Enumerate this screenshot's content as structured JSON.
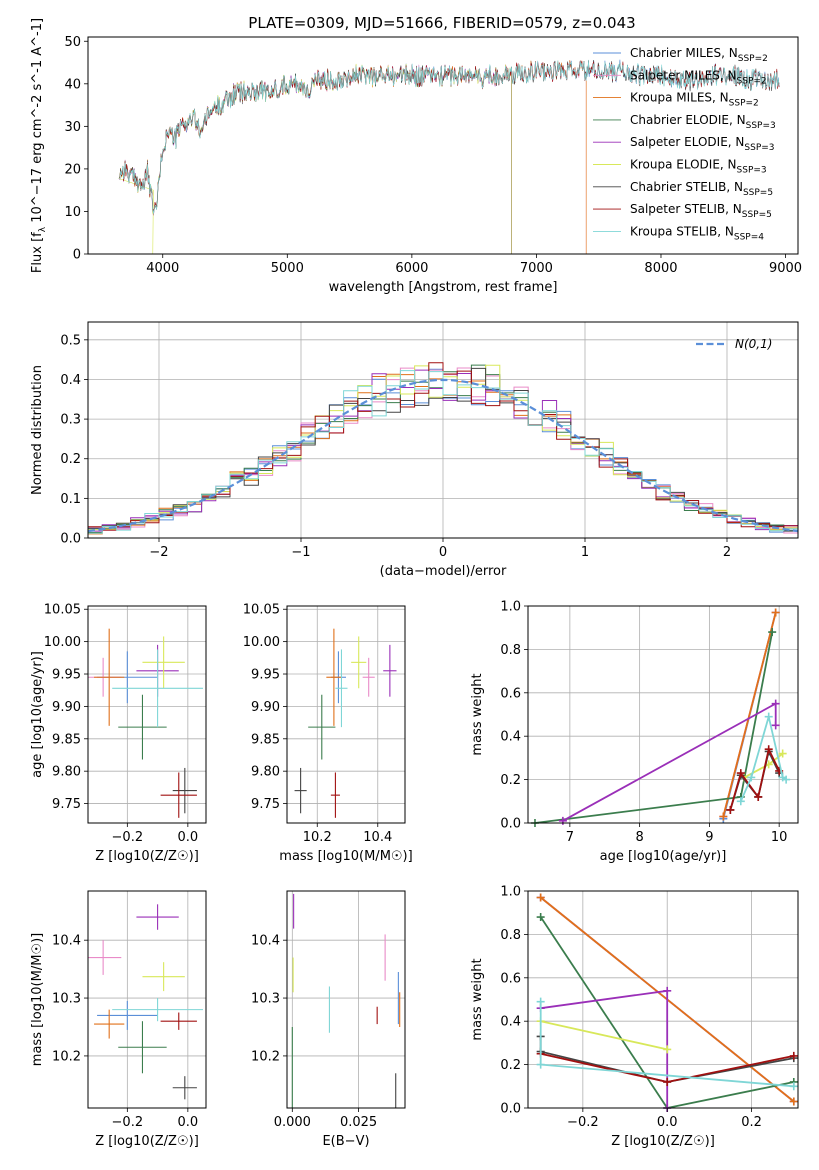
{
  "figure_title": "PLATE=0309, MJD=51666, FIBERID=0579, z=0.043",
  "colors": {
    "Chabrier MILES": "#5b8fd8",
    "Salpeter MILES": "#e98bc8",
    "Kroupa MILES": "#e0701a",
    "Chabrier ELODIE": "#3b7d4d",
    "Salpeter ELODIE": "#9a2fb8",
    "Kroupa ELODIE": "#d8e85a",
    "Chabrier STELIB": "#444444",
    "Salpeter STELIB": "#a01010",
    "Kroupa STELIB": "#7fd6d6",
    "normal": "#5b8fd8"
  },
  "chart_data": [
    {
      "id": "spectrum",
      "type": "line",
      "title": "PLATE=0309, MJD=51666, FIBERID=0579, z=0.043",
      "xlabel": "wavelength [Angstrom, rest frame]",
      "ylabel": "Flux [f_λ 10^-17 erg cm^-2 s^-1 A^-1]",
      "xlim": [
        3400,
        9100
      ],
      "ylim": [
        0,
        51
      ],
      "xticks": [
        4000,
        5000,
        6000,
        7000,
        8000,
        9000
      ],
      "yticks": [
        0,
        10,
        20,
        30,
        40,
        50
      ],
      "grid": false,
      "legend_position": "top-right",
      "legend": [
        {
          "key": "Chabrier MILES",
          "label": "Chabrier MILES, N_SSP=2"
        },
        {
          "key": "Salpeter MILES",
          "label": "Salpeter MILES, N_SSP=2"
        },
        {
          "key": "Kroupa MILES",
          "label": "Kroupa MILES, N_SSP=2"
        },
        {
          "key": "Chabrier ELODIE",
          "label": "Chabrier ELODIE, N_SSP=3"
        },
        {
          "key": "Salpeter ELODIE",
          "label": "Salpeter ELODIE, N_SSP=3"
        },
        {
          "key": "Kroupa ELODIE",
          "label": "Kroupa ELODIE, N_SSP=3"
        },
        {
          "key": "Chabrier STELIB",
          "label": "Chabrier STELIB, N_SSP=5"
        },
        {
          "key": "Salpeter STELIB",
          "label": "Salpeter STELIB, N_SSP=5"
        },
        {
          "key": "Kroupa STELIB",
          "label": "Kroupa STELIB, N_SSP=4"
        }
      ],
      "continuum": [
        [
          3650,
          19
        ],
        [
          3700,
          20
        ],
        [
          3750,
          18
        ],
        [
          3800,
          17
        ],
        [
          3850,
          16
        ],
        [
          3880,
          20
        ],
        [
          3900,
          14
        ],
        [
          3920,
          12
        ],
        [
          3930,
          9
        ],
        [
          3960,
          14
        ],
        [
          4000,
          25
        ],
        [
          4050,
          29
        ],
        [
          4100,
          27
        ],
        [
          4150,
          30
        ],
        [
          4200,
          31
        ],
        [
          4250,
          32
        ],
        [
          4300,
          29
        ],
        [
          4350,
          32
        ],
        [
          4400,
          34
        ],
        [
          4450,
          35
        ],
        [
          4500,
          36
        ],
        [
          4600,
          38
        ],
        [
          4700,
          38
        ],
        [
          4800,
          39
        ],
        [
          4850,
          37
        ],
        [
          4900,
          39
        ],
        [
          5000,
          40
        ],
        [
          5100,
          40
        ],
        [
          5170,
          38
        ],
        [
          5200,
          40
        ],
        [
          5300,
          41
        ],
        [
          5400,
          41
        ],
        [
          5500,
          42
        ],
        [
          5600,
          42
        ],
        [
          5700,
          42
        ],
        [
          5800,
          42
        ],
        [
          5900,
          42
        ],
        [
          6000,
          42
        ],
        [
          6100,
          42
        ],
        [
          6200,
          42
        ],
        [
          6300,
          42
        ],
        [
          6400,
          42
        ],
        [
          6500,
          42
        ],
        [
          6560,
          41
        ],
        [
          6600,
          42
        ],
        [
          6700,
          42
        ],
        [
          6800,
          42
        ],
        [
          6900,
          43
        ],
        [
          7000,
          43
        ],
        [
          7100,
          43
        ],
        [
          7200,
          43
        ],
        [
          7300,
          43
        ],
        [
          7400,
          43
        ],
        [
          7500,
          43
        ],
        [
          7600,
          43
        ],
        [
          7700,
          43
        ],
        [
          7800,
          42
        ],
        [
          7900,
          42
        ],
        [
          8000,
          42
        ],
        [
          8100,
          41
        ],
        [
          8200,
          41
        ],
        [
          8300,
          41
        ],
        [
          8400,
          42
        ],
        [
          8500,
          42
        ],
        [
          8600,
          42
        ],
        [
          8700,
          41
        ],
        [
          8800,
          41
        ],
        [
          8900,
          41
        ]
      ],
      "series_ranges": {
        "Chabrier MILES": [
          3650,
          8950
        ],
        "Salpeter MILES": [
          3650,
          7400
        ],
        "Kroupa MILES": [
          3650,
          7400
        ],
        "Chabrier ELODIE": [
          3650,
          6800
        ],
        "Salpeter ELODIE": [
          3650,
          6800
        ],
        "Kroupa ELODIE": [
          3650,
          6800
        ],
        "Chabrier STELIB": [
          3650,
          8950
        ],
        "Salpeter STELIB": [
          3650,
          8950
        ],
        "Kroupa STELIB": [
          3650,
          8950
        ]
      }
    },
    {
      "id": "residuals",
      "type": "histogram",
      "xlabel": "(data-model)/error",
      "ylabel": "Normed distribution",
      "xlim": [
        -2.5,
        2.5
      ],
      "ylim": [
        0,
        0.545
      ],
      "xticks": [
        -2,
        -1,
        0,
        1,
        2
      ],
      "yticks": [
        0.0,
        0.1,
        0.2,
        0.3,
        0.4,
        0.5
      ],
      "grid": true,
      "legend_position": "top-right",
      "legend": [
        {
          "key": "normal",
          "label": "N(0,1)",
          "style": "dashed"
        }
      ],
      "bin_width": 0.1,
      "bins_from": -2.5,
      "bins_to": 2.5,
      "reference_curve": "standard normal density"
    },
    {
      "id": "age_vs_Z",
      "type": "scatter",
      "xlabel": "Z [log10(Z/Z☉)]",
      "ylabel": "age [log10(age/yr)]",
      "xlim": [
        -0.33,
        0.06
      ],
      "ylim": [
        9.72,
        10.055
      ],
      "xticks": [
        -0.2,
        0.0
      ],
      "yticks": [
        9.75,
        9.8,
        9.85,
        9.9,
        9.95,
        10.0,
        10.05
      ],
      "grid": true,
      "points": [
        {
          "key": "Chabrier MILES",
          "x": -0.2,
          "y": 9.945,
          "xerr": 0.1,
          "yerr": 0.04
        },
        {
          "key": "Salpeter MILES",
          "x": -0.28,
          "y": 9.945,
          "xerr": 0.06,
          "yerr": 0.03
        },
        {
          "key": "Kroupa MILES",
          "x": -0.26,
          "y": 9.945,
          "xerr": 0.05,
          "yerr": 0.075
        },
        {
          "key": "Chabrier ELODIE",
          "x": -0.15,
          "y": 9.868,
          "xerr": 0.08,
          "yerr": 0.05
        },
        {
          "key": "Salpeter ELODIE",
          "x": -0.1,
          "y": 9.955,
          "xerr": 0.07,
          "yerr": 0.04
        },
        {
          "key": "Kroupa ELODIE",
          "x": -0.08,
          "y": 9.968,
          "xerr": 0.07,
          "yerr": 0.04
        },
        {
          "key": "Chabrier STELIB",
          "x": -0.01,
          "y": 9.77,
          "xerr": 0.04,
          "yerr": 0.035
        },
        {
          "key": "Salpeter STELIB",
          "x": -0.03,
          "y": 9.763,
          "xerr": 0.06,
          "yerr": 0.035
        },
        {
          "key": "Kroupa STELIB",
          "x": -0.1,
          "y": 9.928,
          "xerr": 0.15,
          "yerr": 0.06
        }
      ]
    },
    {
      "id": "age_vs_mass",
      "type": "scatter",
      "xlabel": "mass [log10(M/M☉)]",
      "ylabel": "",
      "xlim": [
        10.1,
        10.49
      ],
      "ylim": [
        9.72,
        10.055
      ],
      "xticks": [
        10.2,
        10.4
      ],
      "yticks": [
        9.75,
        9.8,
        9.85,
        9.9,
        9.95,
        10.0,
        10.05
      ],
      "grid": true,
      "points": [
        {
          "key": "Chabrier MILES",
          "x": 10.27,
          "y": 9.945,
          "xerr": 0.025,
          "yerr": 0.04
        },
        {
          "key": "Salpeter MILES",
          "x": 10.37,
          "y": 9.945,
          "xerr": 0.02,
          "yerr": 0.03
        },
        {
          "key": "Kroupa MILES",
          "x": 10.255,
          "y": 9.945,
          "xerr": 0.025,
          "yerr": 0.075
        },
        {
          "key": "Chabrier ELODIE",
          "x": 10.215,
          "y": 9.868,
          "xerr": 0.045,
          "yerr": 0.05
        },
        {
          "key": "Salpeter ELODIE",
          "x": 10.44,
          "y": 9.955,
          "xerr": 0.022,
          "yerr": 0.04
        },
        {
          "key": "Kroupa ELODIE",
          "x": 10.337,
          "y": 9.968,
          "xerr": 0.025,
          "yerr": 0.04
        },
        {
          "key": "Chabrier STELIB",
          "x": 10.145,
          "y": 9.77,
          "xerr": 0.02,
          "yerr": 0.035
        },
        {
          "key": "Salpeter STELIB",
          "x": 10.26,
          "y": 9.763,
          "xerr": 0.015,
          "yerr": 0.035
        },
        {
          "key": "Kroupa STELIB",
          "x": 10.28,
          "y": 9.928,
          "xerr": 0.02,
          "yerr": 0.06
        }
      ]
    },
    {
      "id": "massweight_vs_age",
      "type": "line",
      "xlabel": "age [log10(age/yr)]",
      "ylabel": "mass weight",
      "xlim": [
        6.4,
        10.27
      ],
      "ylim": [
        0,
        1.0
      ],
      "xticks": [
        7,
        8,
        9,
        10
      ],
      "yticks": [
        0.0,
        0.2,
        0.4,
        0.6,
        0.8,
        1.0
      ],
      "grid": true,
      "series": [
        {
          "key": "Chabrier MILES",
          "points": [
            [
              9.95,
              0.97
            ],
            [
              9.2,
              0.02
            ]
          ]
        },
        {
          "key": "Salpeter MILES",
          "points": [
            [
              9.95,
              0.97
            ],
            [
              9.2,
              0.03
            ]
          ]
        },
        {
          "key": "Kroupa MILES",
          "points": [
            [
              9.95,
              0.97
            ],
            [
              9.2,
              0.03
            ]
          ]
        },
        {
          "key": "Chabrier ELODIE",
          "points": [
            [
              6.5,
              0.0
            ],
            [
              9.45,
              0.12
            ],
            [
              9.9,
              0.88
            ]
          ]
        },
        {
          "key": "Salpeter ELODIE",
          "points": [
            [
              6.9,
              0.01
            ],
            [
              9.95,
              0.55
            ],
            [
              9.95,
              0.45
            ]
          ]
        },
        {
          "key": "Kroupa ELODIE",
          "points": [
            [
              9.5,
              0.21
            ],
            [
              9.85,
              0.27
            ],
            [
              10.05,
              0.32
            ]
          ]
        },
        {
          "key": "Chabrier STELIB",
          "points": [
            [
              9.3,
              0.06
            ],
            [
              9.45,
              0.22
            ],
            [
              9.7,
              0.12
            ],
            [
              9.85,
              0.33
            ],
            [
              10.0,
              0.23
            ]
          ]
        },
        {
          "key": "Salpeter STELIB",
          "points": [
            [
              9.3,
              0.06
            ],
            [
              9.45,
              0.23
            ],
            [
              9.7,
              0.12
            ],
            [
              9.85,
              0.34
            ],
            [
              10.0,
              0.24
            ]
          ]
        },
        {
          "key": "Kroupa STELIB",
          "points": [
            [
              9.45,
              0.1
            ],
            [
              9.6,
              0.21
            ],
            [
              9.85,
              0.49
            ],
            [
              10.05,
              0.21
            ],
            [
              10.1,
              0.2
            ]
          ]
        }
      ]
    },
    {
      "id": "mass_vs_Z",
      "type": "scatter",
      "xlabel": "Z [log10(Z/Z☉)]",
      "ylabel": "mass [log10(M/M☉)]",
      "xlim": [
        -0.33,
        0.06
      ],
      "ylim": [
        10.11,
        10.485
      ],
      "xticks": [
        -0.2,
        0.0
      ],
      "yticks": [
        10.2,
        10.3,
        10.4
      ],
      "grid": true,
      "points": [
        {
          "key": "Chabrier MILES",
          "x": -0.2,
          "y": 10.27,
          "xerr": 0.1,
          "yerr": 0.025
        },
        {
          "key": "Salpeter MILES",
          "x": -0.28,
          "y": 10.37,
          "xerr": 0.06,
          "yerr": 0.03
        },
        {
          "key": "Kroupa MILES",
          "x": -0.26,
          "y": 10.255,
          "xerr": 0.05,
          "yerr": 0.025
        },
        {
          "key": "Chabrier ELODIE",
          "x": -0.15,
          "y": 10.215,
          "xerr": 0.08,
          "yerr": 0.045
        },
        {
          "key": "Salpeter ELODIE",
          "x": -0.1,
          "y": 10.44,
          "xerr": 0.07,
          "yerr": 0.022
        },
        {
          "key": "Kroupa ELODIE",
          "x": -0.08,
          "y": 10.337,
          "xerr": 0.07,
          "yerr": 0.025
        },
        {
          "key": "Chabrier STELIB",
          "x": -0.01,
          "y": 10.145,
          "xerr": 0.04,
          "yerr": 0.02
        },
        {
          "key": "Salpeter STELIB",
          "x": -0.03,
          "y": 10.26,
          "xerr": 0.06,
          "yerr": 0.015
        },
        {
          "key": "Kroupa STELIB",
          "x": -0.1,
          "y": 10.28,
          "xerr": 0.15,
          "yerr": 0.02
        }
      ]
    },
    {
      "id": "mass_vs_ebv",
      "type": "scatter",
      "xlabel": "E(B-V)",
      "ylabel": "",
      "xlim": [
        -0.002,
        0.0425
      ],
      "ylim": [
        10.11,
        10.485
      ],
      "xticks": [
        0.0,
        0.025
      ],
      "yticks": [
        10.2,
        10.3,
        10.4
      ],
      "grid": true,
      "points": [
        {
          "key": "Chabrier MILES",
          "x": 0.04,
          "y": 10.3,
          "xerr": 0,
          "yerr": 0.045
        },
        {
          "key": "Salpeter MILES",
          "x": 0.035,
          "y": 10.37,
          "xerr": 0,
          "yerr": 0.04
        },
        {
          "key": "Kroupa MILES",
          "x": 0.0405,
          "y": 10.28,
          "xerr": 0,
          "yerr": 0.03
        },
        {
          "key": "Chabrier ELODIE",
          "x": 0.0,
          "y": 10.18,
          "xerr": 0,
          "yerr": 0.07
        },
        {
          "key": "Salpeter ELODIE",
          "x": 0.0005,
          "y": 10.45,
          "xerr": 0,
          "yerr": 0.03
        },
        {
          "key": "Kroupa ELODIE",
          "x": 0.0003,
          "y": 10.34,
          "xerr": 0,
          "yerr": 0.03
        },
        {
          "key": "Chabrier STELIB",
          "x": 0.039,
          "y": 10.14,
          "xerr": 0,
          "yerr": 0.03
        },
        {
          "key": "Salpeter STELIB",
          "x": 0.032,
          "y": 10.27,
          "xerr": 0,
          "yerr": 0.015
        },
        {
          "key": "Kroupa STELIB",
          "x": 0.014,
          "y": 10.28,
          "xerr": 0,
          "yerr": 0.04
        }
      ]
    },
    {
      "id": "massweight_vs_Z",
      "type": "line",
      "xlabel": "Z [log10(Z/Z☉)]",
      "ylabel": "mass weight",
      "xlim": [
        -0.33,
        0.31
      ],
      "ylim": [
        0,
        1.0
      ],
      "xticks": [
        -0.2,
        0.0,
        0.2
      ],
      "yticks": [
        0.0,
        0.2,
        0.4,
        0.6,
        0.8,
        1.0
      ],
      "grid": true,
      "series": [
        {
          "key": "Chabrier MILES",
          "points": [
            [
              -0.3,
              0.97
            ],
            [
              0.3,
              0.03
            ]
          ]
        },
        {
          "key": "Salpeter MILES",
          "points": [
            [
              -0.3,
              0.97
            ],
            [
              0.3,
              0.03
            ]
          ]
        },
        {
          "key": "Kroupa MILES",
          "points": [
            [
              -0.3,
              0.97
            ],
            [
              0.3,
              0.03
            ]
          ]
        },
        {
          "key": "Chabrier ELODIE",
          "points": [
            [
              -0.3,
              0.88
            ],
            [
              0.0,
              0.0
            ],
            [
              0.3,
              0.12
            ]
          ]
        },
        {
          "key": "Salpeter ELODIE",
          "points": [
            [
              -0.3,
              0.46
            ],
            [
              0.0,
              0.54
            ],
            [
              0.0,
              0.0
            ]
          ]
        },
        {
          "key": "Kroupa ELODIE",
          "points": [
            [
              -0.3,
              0.4
            ],
            [
              0.0,
              0.27
            ]
          ]
        },
        {
          "key": "Chabrier STELIB",
          "points": [
            [
              -0.3,
              0.33
            ],
            [
              -0.3,
              0.26
            ],
            [
              0.0,
              0.12
            ],
            [
              0.3,
              0.23
            ]
          ]
        },
        {
          "key": "Salpeter STELIB",
          "points": [
            [
              -0.3,
              0.25
            ],
            [
              0.0,
              0.12
            ],
            [
              0.3,
              0.24
            ]
          ]
        },
        {
          "key": "Kroupa STELIB",
          "points": [
            [
              -0.3,
              0.49
            ],
            [
              -0.3,
              0.2
            ],
            [
              0.3,
              0.1
            ]
          ]
        }
      ]
    }
  ]
}
